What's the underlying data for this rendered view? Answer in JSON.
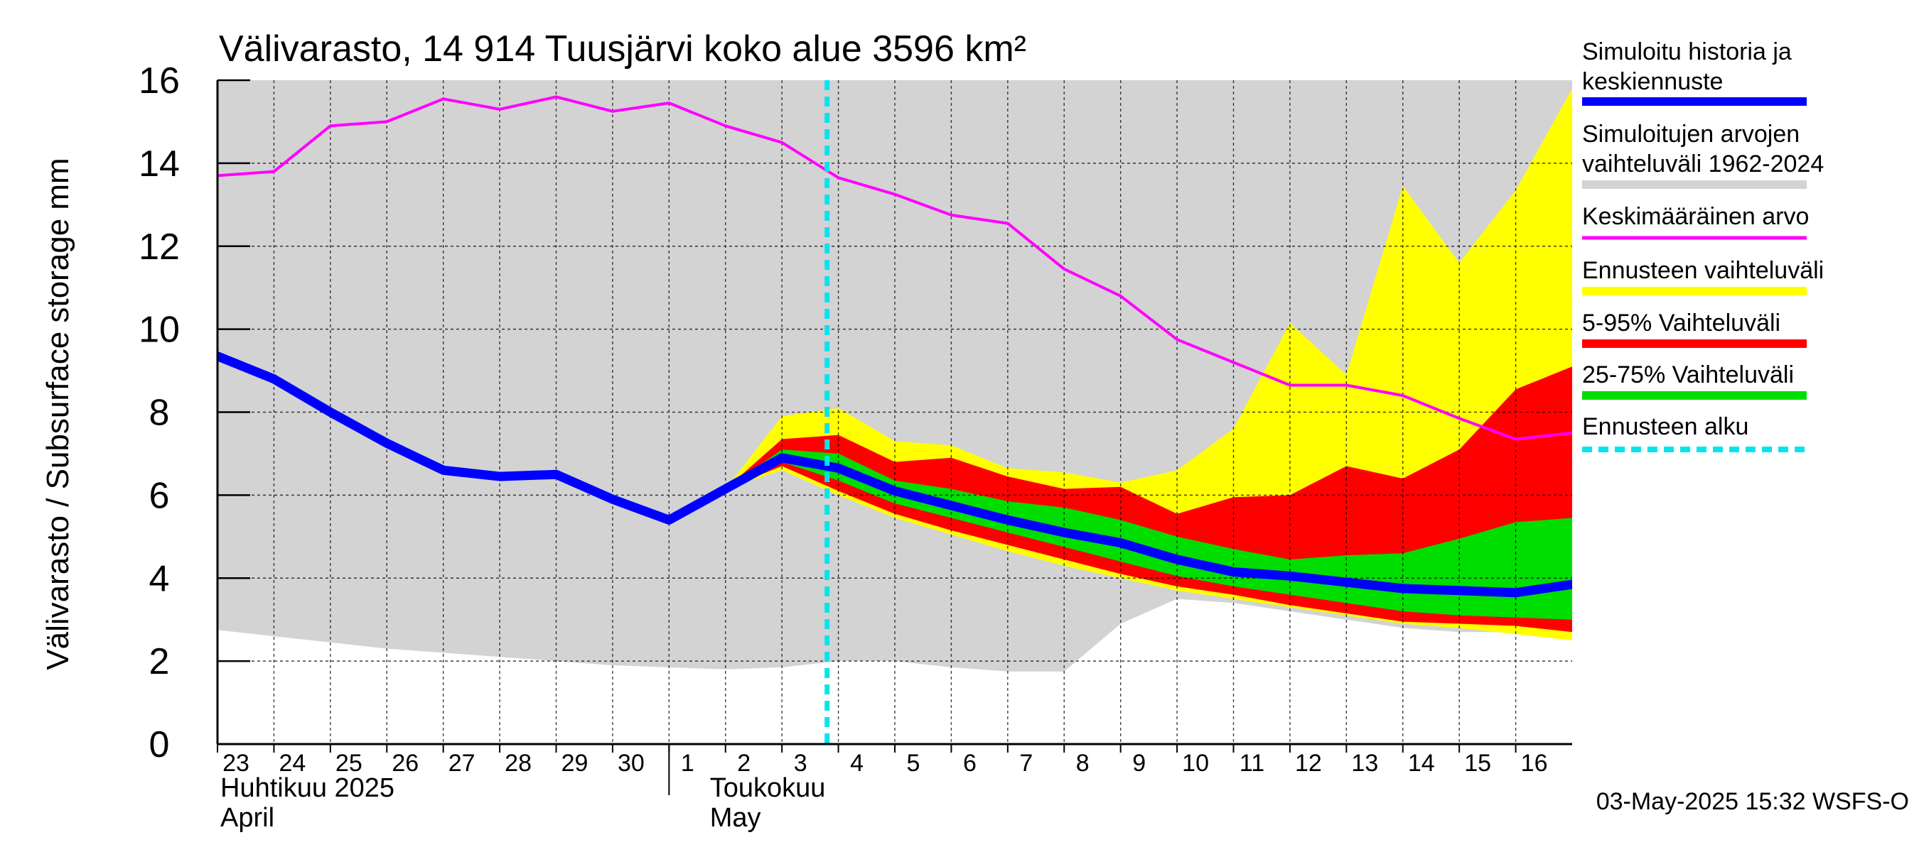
{
  "chart_data": {
    "type": "area",
    "title": "Välivarasto, 14 914 Tuusjärvi koko alue 3596 km²",
    "ylabel": "Välivarasto / Subsurface storage  mm",
    "ylim": [
      0,
      16
    ],
    "y_ticks": [
      0,
      2,
      4,
      6,
      8,
      10,
      12,
      14,
      16
    ],
    "x_range": [
      23,
      47
    ],
    "x_ticks": [
      "23",
      "24",
      "25",
      "26",
      "27",
      "28",
      "29",
      "30",
      "1",
      "2",
      "3",
      "4",
      "5",
      "6",
      "7",
      "8",
      "9",
      "10",
      "11",
      "12",
      "13",
      "14",
      "15",
      "16"
    ],
    "month_labels": [
      {
        "fi": "Huhtikuu  2025",
        "en": "April"
      },
      {
        "fi": "Toukokuu",
        "en": "May"
      }
    ],
    "forecast_start_x": 33.8,
    "footer": "03-May-2025 15:32 WSFS-O",
    "colors": {
      "history_range": "#d3d3d3",
      "mean": "#ff00ff",
      "simulated": "#0000ff",
      "forecast_range": "#ffff00",
      "p5_95": "#ff0000",
      "p25_75": "#00dd00",
      "forecast_start": "#00e5ee"
    },
    "legend": [
      {
        "label": "Simuloitu historia ja keskiennuste",
        "key": "simulated"
      },
      {
        "label": "Simuloitujen arvojen vaihteluväli 1962-2024",
        "key": "history_range"
      },
      {
        "label": "Keskimääräinen arvo",
        "key": "mean"
      },
      {
        "label": "Ennusteen vaihteluväli",
        "key": "forecast_range"
      },
      {
        "label": "5-95% Vaihteluväli",
        "key": "p5_95"
      },
      {
        "label": "25-75% Vaihteluväli",
        "key": "p25_75"
      },
      {
        "label": "Ennusteen alku",
        "key": "forecast_start"
      }
    ],
    "history_range": {
      "x": [
        23,
        24,
        25,
        26,
        27,
        28,
        29,
        30,
        31,
        32,
        33,
        34,
        35,
        36,
        37,
        38,
        39,
        40,
        41,
        42,
        43,
        44,
        45,
        46,
        47
      ],
      "upper": [
        16,
        16,
        16,
        16,
        16,
        16,
        16,
        16,
        16,
        16,
        16,
        16,
        16,
        16,
        16,
        16,
        16,
        16,
        16,
        16,
        16,
        16,
        16,
        16,
        16
      ],
      "lower": [
        2.75,
        2.6,
        2.45,
        2.3,
        2.2,
        2.1,
        2.0,
        1.9,
        1.85,
        1.8,
        1.85,
        2.0,
        2.0,
        1.85,
        1.75,
        1.75,
        2.9,
        3.5,
        3.4,
        3.2,
        3.0,
        2.8,
        2.7,
        2.7,
        2.6
      ]
    },
    "mean": {
      "x": [
        23,
        24,
        25,
        26,
        27,
        28,
        29,
        30,
        31,
        32,
        33,
        34,
        35,
        36,
        37,
        38,
        39,
        40,
        41,
        42,
        43,
        44,
        45,
        46,
        47
      ],
      "y": [
        13.7,
        13.8,
        14.9,
        15.0,
        15.55,
        15.3,
        15.6,
        15.25,
        15.45,
        14.9,
        14.5,
        13.65,
        13.25,
        12.75,
        12.55,
        11.45,
        10.8,
        9.75,
        9.2,
        8.65,
        8.65,
        8.4,
        7.85,
        7.35,
        7.5
      ]
    },
    "simulated": {
      "x": [
        23,
        24,
        25,
        26,
        27,
        28,
        29,
        30,
        31,
        32,
        33,
        34,
        35,
        36,
        37,
        38,
        39,
        40,
        41,
        42,
        43,
        44,
        45,
        46,
        47
      ],
      "y": [
        9.35,
        8.8,
        8.0,
        7.25,
        6.6,
        6.45,
        6.5,
        5.9,
        5.4,
        6.15,
        6.9,
        6.65,
        6.1,
        5.75,
        5.4,
        5.1,
        4.85,
        4.45,
        4.15,
        4.05,
        3.9,
        3.75,
        3.7,
        3.65,
        3.85
      ]
    },
    "forecast_range": {
      "x": [
        32,
        33,
        34,
        35,
        36,
        37,
        38,
        39,
        40,
        41,
        42,
        43,
        44,
        45,
        46,
        47
      ],
      "upper": [
        6.15,
        7.9,
        8.1,
        7.3,
        7.2,
        6.65,
        6.55,
        6.3,
        6.6,
        7.6,
        10.15,
        8.9,
        13.45,
        11.6,
        13.35,
        15.8
      ],
      "lower": [
        6.15,
        6.6,
        6.0,
        5.45,
        5.05,
        4.65,
        4.3,
        4.0,
        3.7,
        3.5,
        3.3,
        3.1,
        2.9,
        2.8,
        2.65,
        2.5
      ]
    },
    "p5_95": {
      "x": [
        32,
        33,
        34,
        35,
        36,
        37,
        38,
        39,
        40,
        41,
        42,
        43,
        44,
        45,
        46,
        47
      ],
      "upper": [
        6.15,
        7.35,
        7.45,
        6.8,
        6.9,
        6.45,
        6.15,
        6.2,
        5.55,
        5.95,
        6.0,
        6.7,
        6.4,
        7.1,
        8.55,
        9.1
      ],
      "lower": [
        6.15,
        6.7,
        6.1,
        5.55,
        5.15,
        4.8,
        4.45,
        4.1,
        3.8,
        3.6,
        3.35,
        3.15,
        2.95,
        2.9,
        2.85,
        2.7
      ]
    },
    "p25_75": {
      "x": [
        32,
        33,
        34,
        35,
        36,
        37,
        38,
        39,
        40,
        41,
        42,
        43,
        44,
        45,
        46,
        47
      ],
      "upper": [
        6.15,
        7.1,
        7.0,
        6.35,
        6.15,
        5.85,
        5.7,
        5.4,
        5.0,
        4.7,
        4.45,
        4.55,
        4.6,
        4.95,
        5.35,
        5.45
      ],
      "lower": [
        6.15,
        6.8,
        6.35,
        5.8,
        5.45,
        5.1,
        4.75,
        4.4,
        4.05,
        3.8,
        3.6,
        3.4,
        3.2,
        3.1,
        3.05,
        3.0
      ]
    }
  }
}
